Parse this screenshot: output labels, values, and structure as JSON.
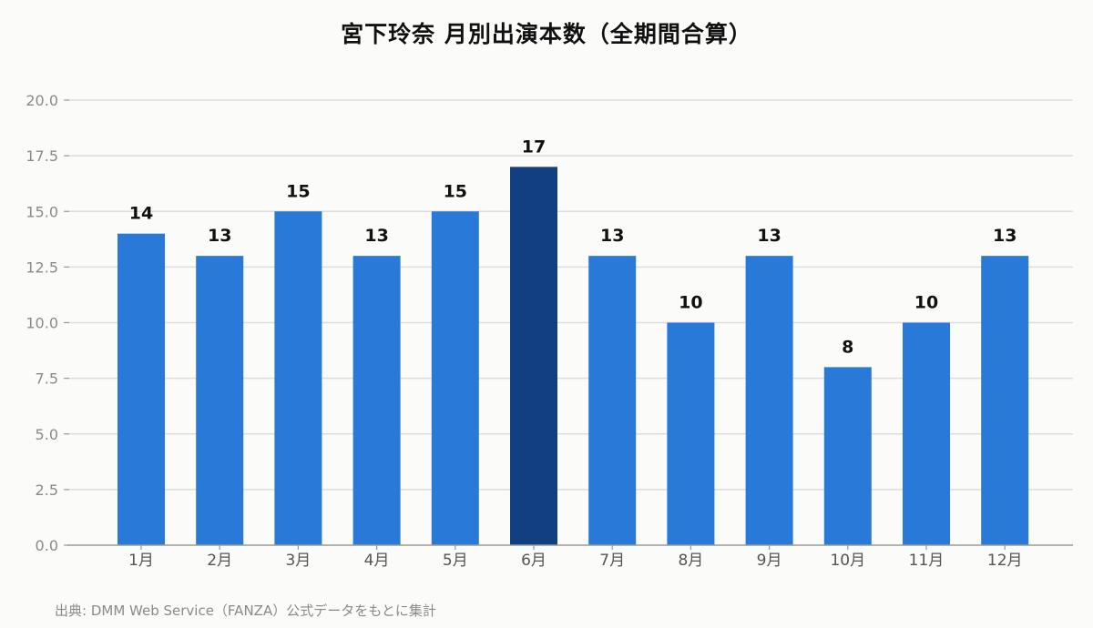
{
  "colors": {
    "bar": "#2979d8",
    "highlight": "#123f80",
    "grid": "#dddddd",
    "axis": "#999999"
  },
  "source_note": "出典: DMM Web Service（FANZA）公式データをもとに集計",
  "chart_data": {
    "type": "bar",
    "title": "宮下玲奈 月別出演本数（全期間合算）",
    "xlabel": "",
    "ylabel": "",
    "categories": [
      "1月",
      "2月",
      "3月",
      "4月",
      "5月",
      "6月",
      "7月",
      "8月",
      "9月",
      "10月",
      "11月",
      "12月"
    ],
    "values": [
      14,
      13,
      15,
      13,
      15,
      17,
      13,
      10,
      13,
      8,
      10,
      13
    ],
    "highlight_category": "6月",
    "ylim": [
      0,
      20
    ],
    "yticks": [
      "0.0",
      "2.5",
      "5.0",
      "7.5",
      "10.0",
      "12.5",
      "15.0",
      "17.5",
      "20.0"
    ],
    "grid": true,
    "data_labels": true
  }
}
